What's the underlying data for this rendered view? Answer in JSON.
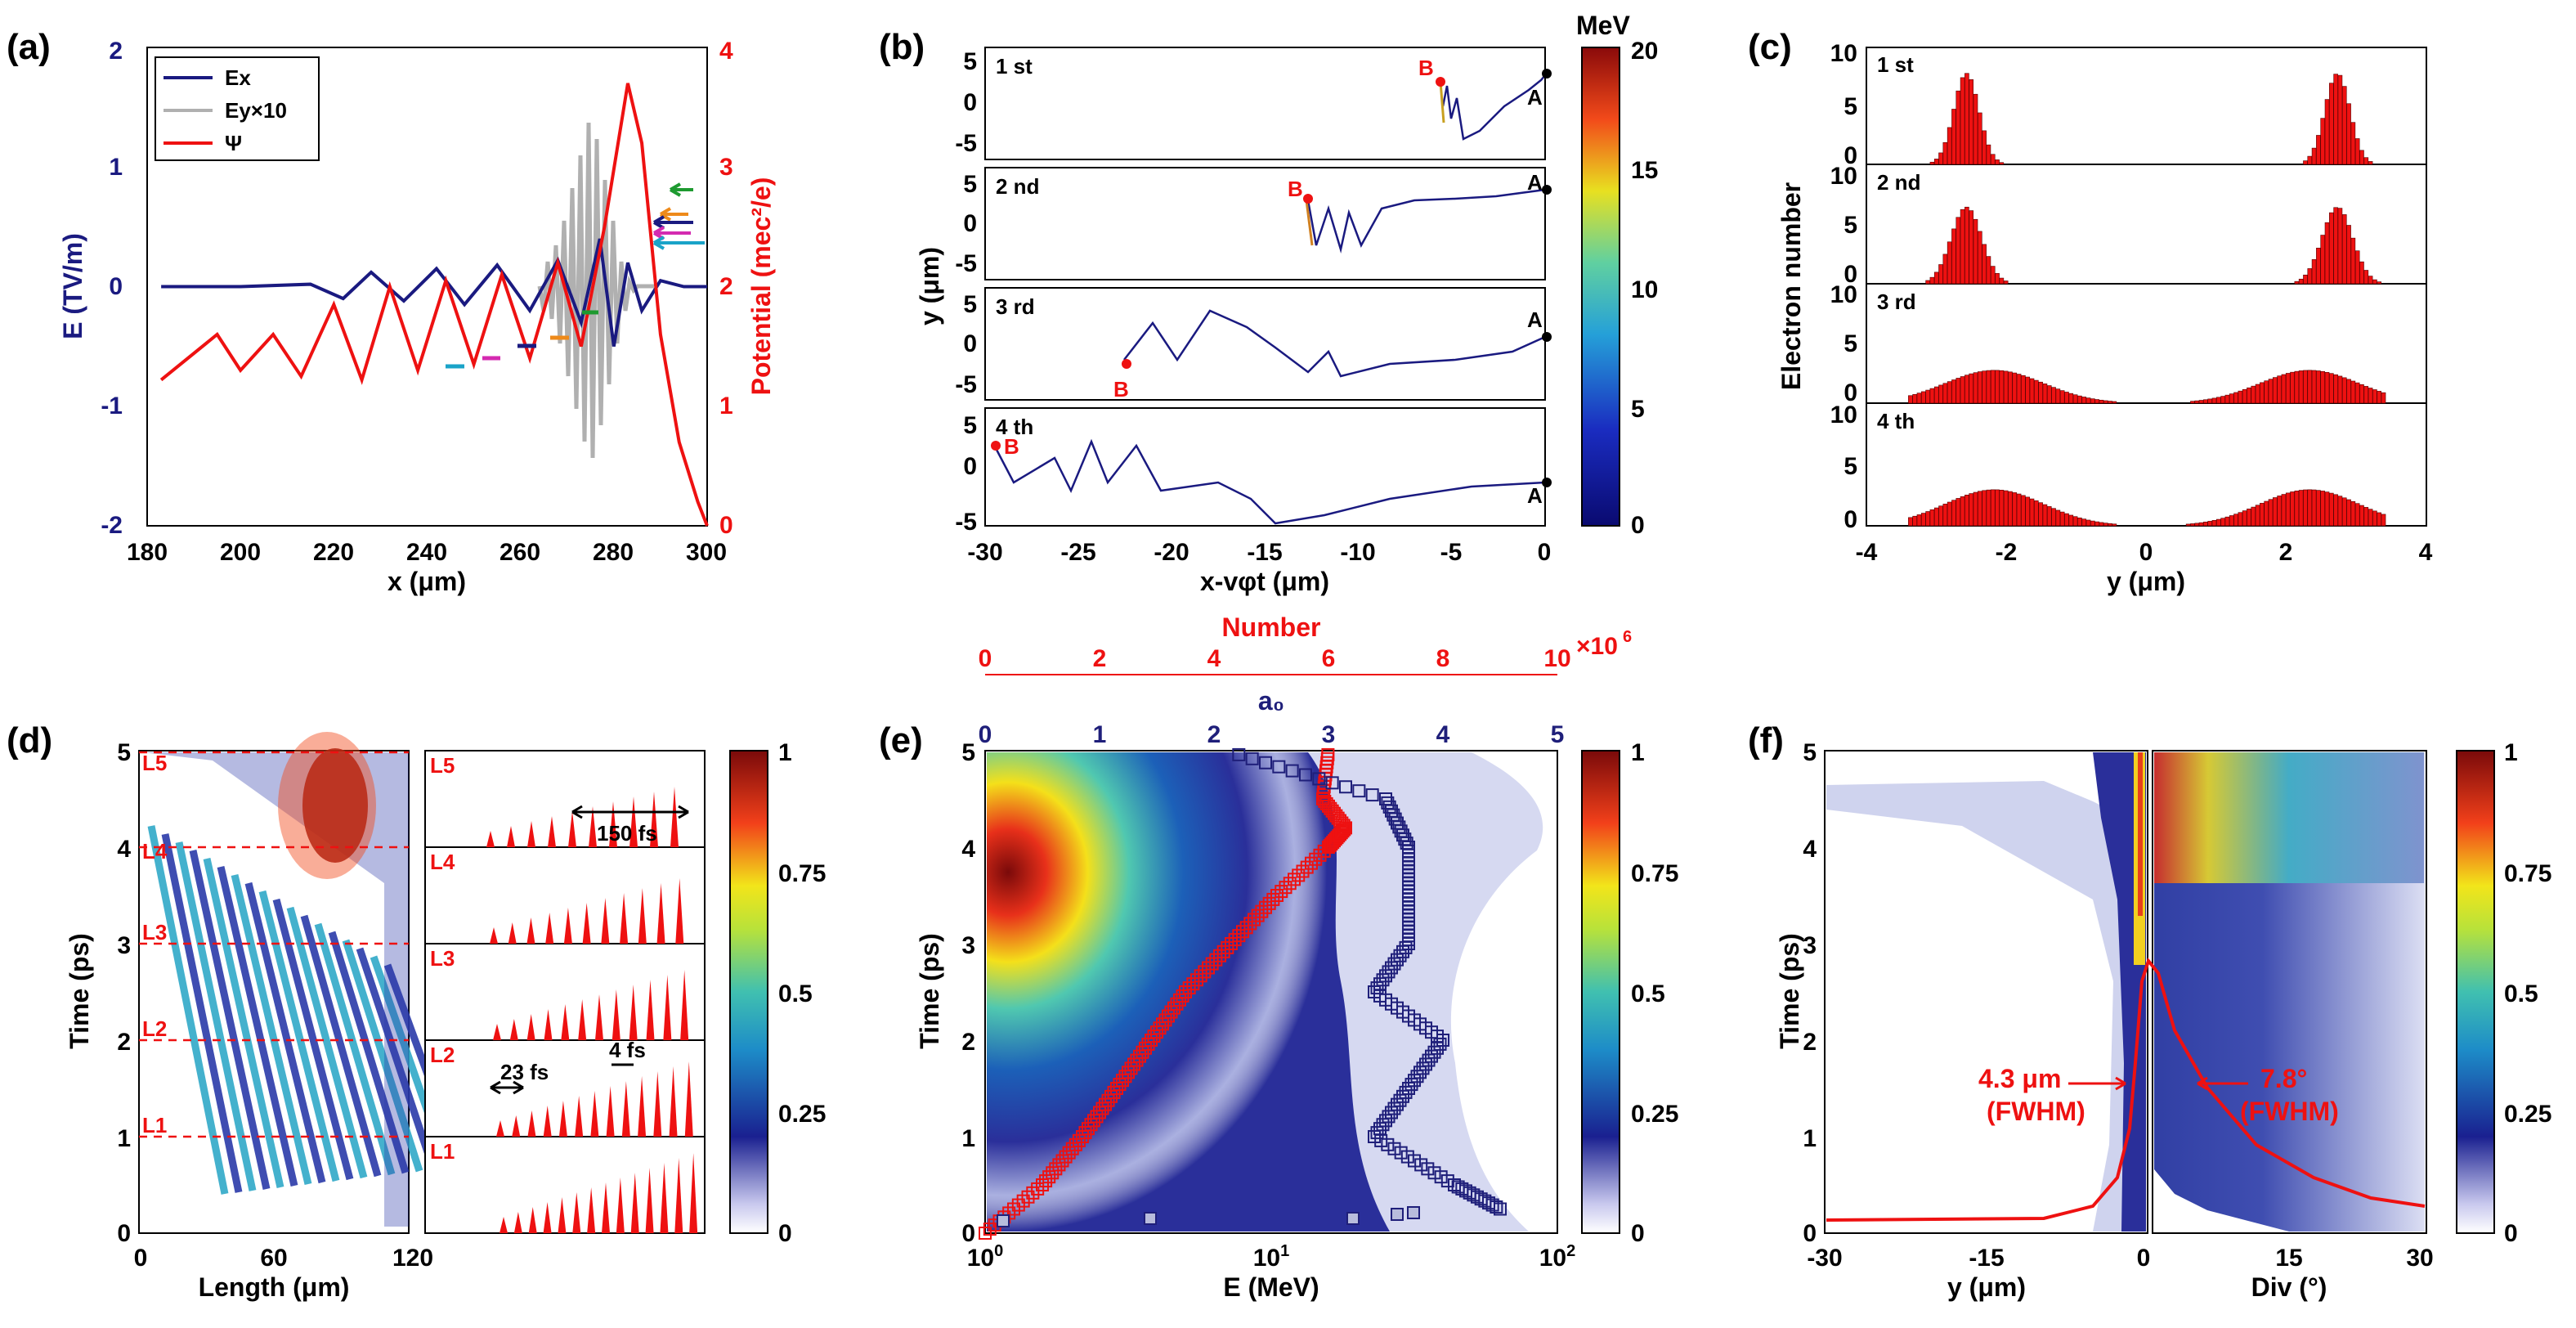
{
  "figure": {
    "panel_letters": [
      "(a)",
      "(b)",
      "(c)",
      "(d)",
      "(e)",
      "(f)"
    ],
    "colorbar_ticks_norm": [
      "0",
      "0.25",
      "0.5",
      "0.75",
      "1"
    ]
  },
  "chart_data": [
    {
      "panel": "(a)",
      "type": "line",
      "xlabel": "x (μm)",
      "ylabel_left": "E (TV/m)",
      "ylabel_right": "Potential (mec²/e)",
      "xlim": [
        180,
        300
      ],
      "ylim_left": [
        -2,
        2
      ],
      "ylim_right": [
        0,
        4
      ],
      "x_ticks": [
        "180",
        "200",
        "220",
        "240",
        "260",
        "280",
        "300"
      ],
      "y_ticks_left": [
        "-2",
        "-1",
        "0",
        "1",
        "2"
      ],
      "y_ticks_right": [
        "0",
        "1",
        "2",
        "3",
        "4"
      ],
      "legend": [
        "Ex",
        "Ey×10",
        "Ψ"
      ],
      "legend_position": "top-left",
      "series": [
        {
          "name": "Ex",
          "color": "#1a1a80",
          "x": [
            183,
            200,
            215,
            222,
            228,
            235,
            242,
            248,
            255,
            262,
            268,
            273,
            277,
            280,
            283,
            286,
            290,
            295,
            300
          ],
          "y": [
            0,
            0,
            0.02,
            -0.1,
            0.12,
            -0.12,
            0.15,
            -0.15,
            0.18,
            -0.2,
            0.22,
            -0.3,
            0.4,
            -0.5,
            0.2,
            -0.2,
            0.05,
            0,
            0
          ]
        },
        {
          "name": "Ψ",
          "color": "#ee1111",
          "x": [
            183,
            195,
            200,
            207,
            213,
            220,
            226,
            232,
            238,
            244,
            250,
            256,
            262,
            268,
            273,
            278,
            283,
            286,
            290,
            294,
            298,
            300
          ],
          "y": [
            1.22,
            1.6,
            1.3,
            1.6,
            1.25,
            1.85,
            1.22,
            2.0,
            1.3,
            2.05,
            1.35,
            2.1,
            1.4,
            2.2,
            1.5,
            2.5,
            3.7,
            3.2,
            1.6,
            0.7,
            0.2,
            0
          ]
        }
      ]
    },
    {
      "panel": "(b)",
      "type": "line",
      "xlabel": "x-vφt (μm)",
      "ylabel": "y (μm)",
      "xlim": [
        -30,
        0
      ],
      "ylim": [
        -5,
        5
      ],
      "x_ticks": [
        "-30",
        "-25",
        "-20",
        "-15",
        "-10",
        "-5",
        "0"
      ],
      "y_ticks": [
        "-5",
        "0",
        "5"
      ],
      "subplot_labels": [
        "1 st",
        "2 nd",
        "3 rd",
        "4 th"
      ],
      "point_labels": [
        "A",
        "B"
      ],
      "colorbar_title": "MeV",
      "colorbar_ticks": [
        "0",
        "5",
        "10",
        "15",
        "20"
      ],
      "colorbar_range": [
        0,
        20
      ]
    },
    {
      "panel": "(c)",
      "type": "bar",
      "xlabel": "y (μm)",
      "ylabel": "Electron number",
      "xlim": [
        -4,
        4
      ],
      "ylim": [
        0,
        10
      ],
      "x_ticks": [
        "-4",
        "-2",
        "0",
        "2",
        "4"
      ],
      "y_ticks": [
        "0",
        "5",
        "10"
      ],
      "subplot_labels": [
        "1 st",
        "2 nd",
        "3 rd",
        "4 th"
      ]
    },
    {
      "panel": "(d)",
      "type": "heatmap",
      "xlabel": "Length (μm)",
      "ylabel": "Time (ps)",
      "xlim": [
        0,
        120
      ],
      "ylim": [
        0,
        5
      ],
      "x_ticks": [
        "0",
        "60",
        "120"
      ],
      "y_ticks": [
        "0",
        "1",
        "2",
        "3",
        "4",
        "5"
      ],
      "line_labels": [
        "L1",
        "L2",
        "L3",
        "L4",
        "L5"
      ],
      "line_times": [
        1,
        2,
        3,
        4,
        5
      ],
      "annotations": [
        "150 fs",
        "23 fs",
        "4 fs"
      ]
    },
    {
      "panel": "(e)",
      "type": "heatmap",
      "xlabel": "E (MeV)",
      "ylabel": "Time (ps)",
      "top_axis_number_label": "Number",
      "top_axis_number_ticks": [
        "0",
        "2",
        "4",
        "6",
        "8",
        "10"
      ],
      "top_axis_number_exponent": "×10",
      "top_axis_number_exponent_power": "6",
      "top_axis_a0_label": "a₀",
      "top_axis_a0_ticks": [
        "0",
        "1",
        "2",
        "3",
        "4",
        "5"
      ],
      "x_tick_base": "10",
      "x_tick_exponents": [
        "0",
        "1",
        "2"
      ],
      "y_ticks": [
        "0",
        "1",
        "2",
        "3",
        "4",
        "5"
      ],
      "series": [
        {
          "name": "Number",
          "color": "#ee1111",
          "time": [
            0,
            0.5,
            1,
            1.5,
            2,
            2.5,
            3,
            3.5,
            4,
            4.2,
            4.5,
            5
          ],
          "value": [
            0,
            1.0,
            1.7,
            2.3,
            2.9,
            3.5,
            4.3,
            5.1,
            6.0,
            6.3,
            5.9,
            6.0
          ]
        },
        {
          "name": "a0",
          "color": "#1f1f7a",
          "time": [
            0.25,
            0.5,
            1.0,
            1.5,
            2.0,
            2.5,
            3.0,
            3.5,
            4.0,
            4.5,
            5.0
          ],
          "value": [
            4.5,
            4.1,
            3.4,
            3.7,
            4.0,
            3.4,
            3.7,
            3.7,
            3.7,
            3.5,
            2.1
          ]
        }
      ]
    },
    {
      "panel": "(f)",
      "type": "heatmap",
      "xlabel_left": "y (μm)",
      "xlabel_right": "Div (°)",
      "ylabel": "Time (ps)",
      "x_ticks_left": [
        "-30",
        "-15",
        "0"
      ],
      "x_ticks_right": [
        "0",
        "15",
        "30"
      ],
      "y_ticks": [
        "0",
        "1",
        "2",
        "3",
        "4",
        "5"
      ],
      "annotation_left": "4.3 μm",
      "annotation_left_sub": "(FWHM)",
      "annotation_right": "7.8°",
      "annotation_right_sub": "(FWHM)"
    }
  ]
}
